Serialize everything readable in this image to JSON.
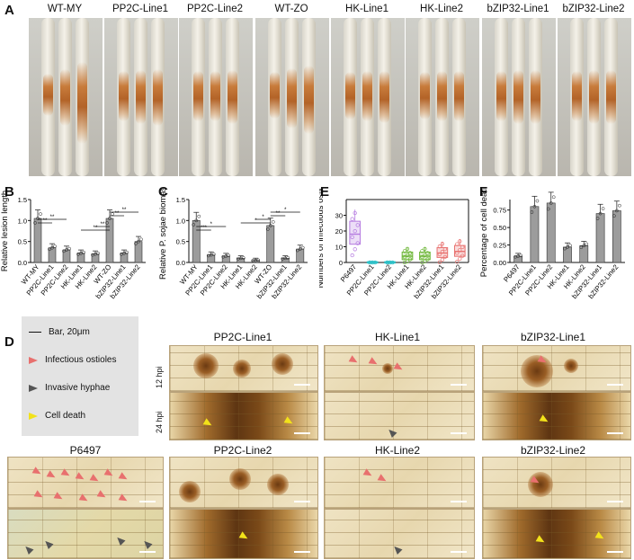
{
  "panel_letters": {
    "a": "A",
    "b": "B",
    "c": "C",
    "d": "D",
    "e": "E",
    "f": "F"
  },
  "panel_a": {
    "labels": [
      "WT-MY",
      "PP2C-Line1",
      "PP2C-Line2",
      "WT-ZO",
      "HK-Line1",
      "HK-Line2",
      "bZIP32-Line1",
      "bZIP32-Line2"
    ]
  },
  "chart_data": [
    {
      "panel": "B",
      "type": "bar",
      "ylabel": "Relative lesion length",
      "categories": [
        "WT-MY",
        "PP2C-Line1",
        "PP2C-Line2",
        "HK-Line1",
        "HK-Line2",
        "WT-ZO",
        "bZIP32-Line1",
        "bZIP32-Line2"
      ],
      "values": [
        1.05,
        0.35,
        0.3,
        0.22,
        0.2,
        1.05,
        0.22,
        0.5
      ],
      "ylim": [
        0,
        1.5
      ],
      "yticks": [
        "0.0",
        "0.5",
        "1.0",
        "1.5"
      ],
      "significance": [
        "**",
        "**",
        "**",
        "**",
        "**",
        "**"
      ]
    },
    {
      "panel": "C",
      "type": "bar",
      "ylabel": "Relative P. sojae biomass",
      "categories": [
        "WT-MY",
        "PP2C-Line1",
        "PP2C-Line2",
        "HK-Line1",
        "HK-Line2",
        "WT-ZO",
        "bZIP32-Line1",
        "bZIP32-Line2"
      ],
      "values": [
        1.0,
        0.18,
        0.15,
        0.1,
        0.05,
        0.88,
        0.1,
        0.32
      ],
      "ylim": [
        0,
        1.5
      ],
      "yticks": [
        "0.0",
        "0.5",
        "1.0",
        "1.5"
      ],
      "significance": [
        "***",
        "*",
        "*",
        "*",
        "**",
        "*"
      ]
    },
    {
      "panel": "E",
      "type": "box",
      "ylabel": "Numbers of infectious ostioles",
      "categories": [
        "P6497",
        "PP2C-Line1",
        "PP2C-Line2",
        "HK-Line1",
        "HK-Line2",
        "bZIP32-Line1",
        "bZIP32-Line2"
      ],
      "medians": [
        18,
        0,
        0,
        4,
        4,
        6,
        7
      ],
      "ylim": [
        0,
        40
      ],
      "yticks": [
        "0",
        "10",
        "20",
        "30"
      ]
    },
    {
      "panel": "F",
      "type": "bar",
      "ylabel": "Percentage of cell death",
      "categories": [
        "P6497",
        "PP2C-Line1",
        "PP2C-Line2",
        "HK-Line1",
        "HK-Line2",
        "bZIP32-Line1",
        "bZIP32-Line2"
      ],
      "values": [
        0.09,
        0.8,
        0.85,
        0.22,
        0.24,
        0.7,
        0.74
      ],
      "ylim": [
        0,
        0.9
      ],
      "yticks": [
        "0.00",
        "0.25",
        "0.50",
        "0.75"
      ]
    }
  ],
  "panel_d": {
    "legend": {
      "bar": "Bar, 20μm",
      "infectious": "Infectious ostioles",
      "invasive": "Invasive hyphae",
      "death": "Cell death"
    },
    "titles": {
      "pp2c1": "PP2C-Line1",
      "hk1": "HK-Line1",
      "bzip1": "bZIP32-Line1",
      "p6497": "P6497",
      "pp2c2": "PP2C-Line2",
      "hk2": "HK-Line2",
      "bzip2": "bZIP32-Line2"
    },
    "hpi": {
      "h12": "12 hpi",
      "h24": "24 hpi"
    },
    "colors": {
      "red": "#e8706e",
      "gray": "#555555",
      "yellow": "#f2e21a"
    }
  }
}
